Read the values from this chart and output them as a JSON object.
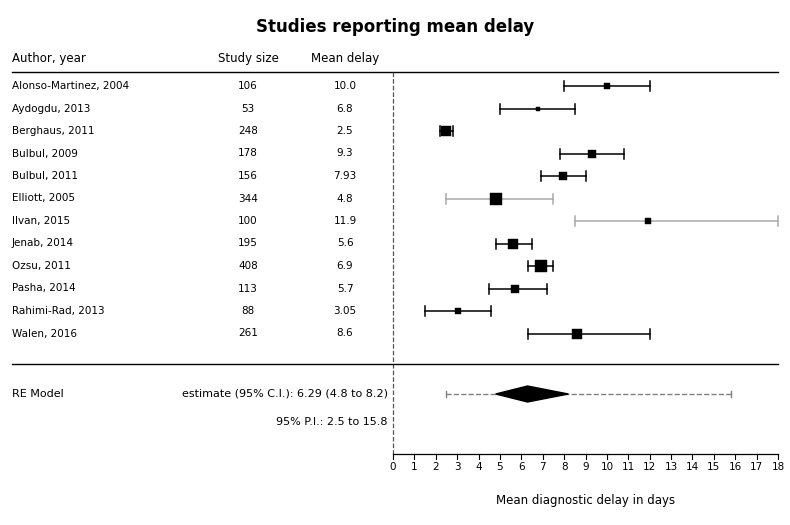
{
  "title": "Studies reporting mean delay",
  "xlabel": "Mean diagnostic delay in days",
  "header_author": "Author, year",
  "header_size": "Study size",
  "header_delay": "Mean delay",
  "studies": [
    {
      "author": "Alonso-Martinez, 2004",
      "n": 106,
      "mean": 10.0,
      "ci_lo": 8.0,
      "ci_hi": 12.0,
      "gray": false
    },
    {
      "author": "Aydogdu, 2013",
      "n": 53,
      "mean": 6.8,
      "ci_lo": 5.0,
      "ci_hi": 8.5,
      "gray": false
    },
    {
      "author": "Berghaus, 2011",
      "n": 248,
      "mean": 2.5,
      "ci_lo": 2.2,
      "ci_hi": 2.8,
      "gray": false
    },
    {
      "author": "Bulbul, 2009",
      "n": 178,
      "mean": 9.3,
      "ci_lo": 7.8,
      "ci_hi": 10.8,
      "gray": false
    },
    {
      "author": "Bulbul, 2011",
      "n": 156,
      "mean": 7.93,
      "ci_lo": 6.9,
      "ci_hi": 9.0,
      "gray": false
    },
    {
      "author": "Elliott, 2005",
      "n": 344,
      "mean": 4.8,
      "ci_lo": 2.5,
      "ci_hi": 7.5,
      "gray": true
    },
    {
      "author": "Ilvan, 2015",
      "n": 100,
      "mean": 11.9,
      "ci_lo": 8.5,
      "ci_hi": 18.0,
      "gray": true
    },
    {
      "author": "Jenab, 2014",
      "n": 195,
      "mean": 5.6,
      "ci_lo": 4.8,
      "ci_hi": 6.5,
      "gray": false
    },
    {
      "author": "Ozsu, 2011",
      "n": 408,
      "mean": 6.9,
      "ci_lo": 6.3,
      "ci_hi": 7.5,
      "gray": false
    },
    {
      "author": "Pasha, 2014",
      "n": 113,
      "mean": 5.7,
      "ci_lo": 4.5,
      "ci_hi": 7.2,
      "gray": false
    },
    {
      "author": "Rahimi-Rad, 2013",
      "n": 88,
      "mean": 3.05,
      "ci_lo": 1.5,
      "ci_hi": 4.6,
      "gray": false
    },
    {
      "author": "Walen, 2016",
      "n": 261,
      "mean": 8.6,
      "ci_lo": 6.3,
      "ci_hi": 12.0,
      "gray": false
    }
  ],
  "re_model": {
    "label": "RE Model",
    "estimate_text": "estimate (95% C.I.): 6.29 (4.8 to 8.2)",
    "pi_text": "95% P.I.: 2.5 to 15.8",
    "mean": 6.29,
    "ci_lo": 4.8,
    "ci_hi": 8.2,
    "pi_lo": 2.5,
    "pi_hi": 15.8
  },
  "xmin": 0,
  "xmax": 18,
  "xticks": [
    0,
    1,
    2,
    3,
    4,
    5,
    6,
    7,
    8,
    9,
    10,
    11,
    12,
    13,
    14,
    15,
    16,
    17,
    18
  ],
  "bg_color": "#ffffff",
  "text_color": "#000000",
  "gray_color": "#aaaaaa"
}
